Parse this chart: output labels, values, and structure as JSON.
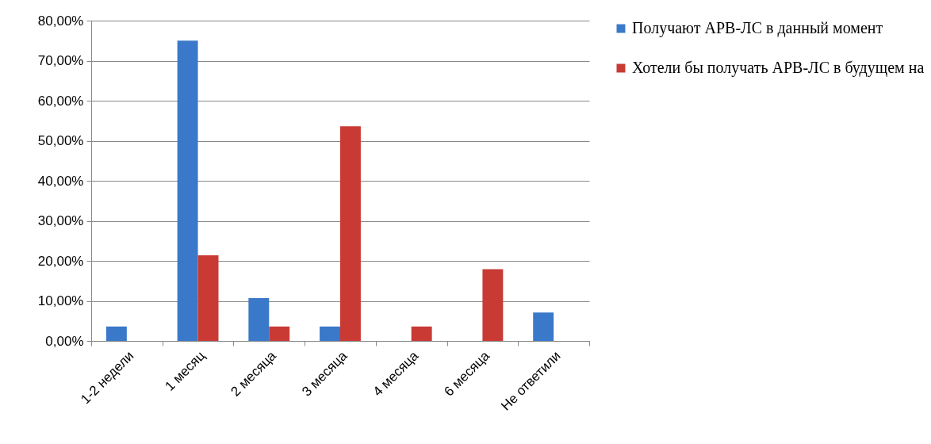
{
  "chart_data": {
    "type": "bar",
    "categories": [
      "1-2 недели",
      "1 месяц",
      "2 месяца",
      "3 месяца",
      "4 месяца",
      "6 месяца",
      "Не ответили"
    ],
    "series": [
      {
        "name": "Получают АРВ-ЛС в данный момент",
        "color": "#3a78c9",
        "values": [
          3.6,
          75,
          10.7,
          3.6,
          0,
          0,
          7.1
        ]
      },
      {
        "name": "Хотели бы получать АРВ-ЛС в будущем на",
        "color": "#c93a35",
        "values": [
          0,
          21.4,
          3.6,
          53.6,
          3.6,
          17.9,
          0
        ]
      }
    ],
    "ylim": [
      0,
      80
    ],
    "yticks": [
      {
        "value": 0,
        "label": "0,00%"
      },
      {
        "value": 10,
        "label": "10,00%"
      },
      {
        "value": 20,
        "label": "20,00%"
      },
      {
        "value": 30,
        "label": "30,00%"
      },
      {
        "value": 40,
        "label": "40,00%"
      },
      {
        "value": 50,
        "label": "50,00%"
      },
      {
        "value": 60,
        "label": "60,00%"
      },
      {
        "value": 70,
        "label": "70,00%"
      },
      {
        "value": 80,
        "label": "80,00%"
      }
    ],
    "grid": "y",
    "legend": "right"
  }
}
